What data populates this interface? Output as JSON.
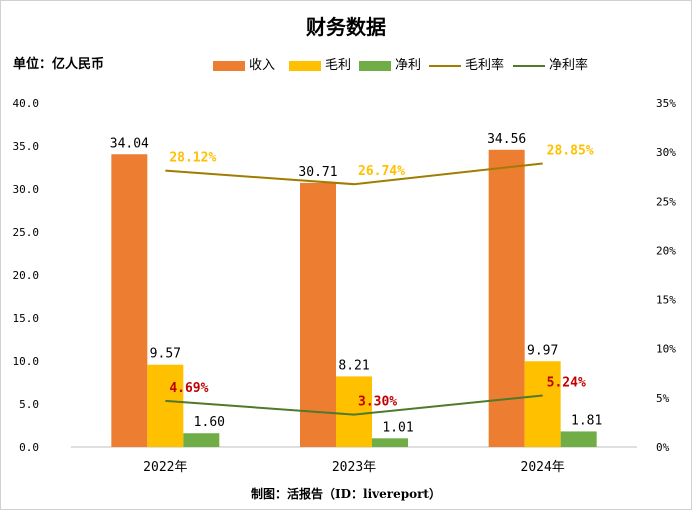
{
  "chart_data": {
    "type": "bar",
    "title": "财务数据",
    "unit_label": "单位：亿人民币",
    "source_note": "制图：活报告（ID：livereport）",
    "categories": [
      "2022年",
      "2023年",
      "2024年"
    ],
    "series": [
      {
        "name": "收入",
        "kind": "bar",
        "axis": "left",
        "color": "#ED7D31",
        "values": [
          34.04,
          30.71,
          34.56
        ],
        "labels": [
          "34.04",
          "30.71",
          "34.56"
        ]
      },
      {
        "name": "毛利",
        "kind": "bar",
        "axis": "left",
        "color": "#FFC000",
        "values": [
          9.57,
          8.21,
          9.97
        ],
        "labels": [
          "9.57",
          "8.21",
          "9.97"
        ]
      },
      {
        "name": "净利",
        "kind": "bar",
        "axis": "left",
        "color": "#70AD47",
        "values": [
          1.6,
          1.01,
          1.81
        ],
        "labels": [
          "1.60",
          "1.01",
          "1.81"
        ]
      },
      {
        "name": "毛利率",
        "kind": "line",
        "axis": "right",
        "color": "#A07C00",
        "label_color": "#FFC000",
        "values": [
          28.12,
          26.74,
          28.85
        ],
        "labels": [
          "28.12%",
          "26.74%",
          "28.85%"
        ]
      },
      {
        "name": "净利率",
        "kind": "line",
        "axis": "right",
        "color": "#4E7A2A",
        "label_color": "#C00000",
        "values": [
          4.69,
          3.3,
          5.24
        ],
        "labels": [
          "4.69%",
          "3.30%",
          "5.24%"
        ]
      }
    ],
    "ylim": [
      0,
      40
    ],
    "yticks": [
      "0.0",
      "5.0",
      "10.0",
      "15.0",
      "20.0",
      "25.0",
      "30.0",
      "35.0",
      "40.0"
    ],
    "y2lim": [
      0,
      35
    ],
    "y2ticks": [
      "0%",
      "5%",
      "10%",
      "15%",
      "20%",
      "25%",
      "30%",
      "35%"
    ],
    "grid": false,
    "legend_position": "top"
  }
}
